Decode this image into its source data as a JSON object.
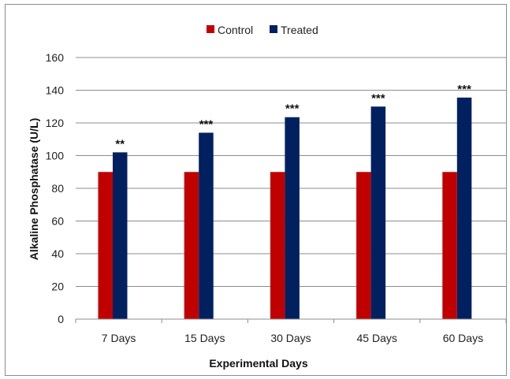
{
  "chart_data": {
    "type": "bar",
    "categories": [
      "7 Days",
      "15 Days",
      "30 Days",
      "45 Days",
      "60 Days"
    ],
    "series": [
      {
        "name": "Control",
        "color": "#c00000",
        "values": [
          90,
          90,
          90,
          90,
          90
        ]
      },
      {
        "name": "Treated",
        "color": "#002060",
        "values": [
          102,
          114,
          123.5,
          130,
          135.5
        ]
      }
    ],
    "significance": [
      "**",
      "***",
      "***",
      "***",
      "***"
    ],
    "xlabel": "Experimental Days",
    "ylabel": "Alkaline Phosphatase (U/L)",
    "ylim": [
      0,
      160
    ],
    "yticks": [
      0,
      20,
      40,
      60,
      80,
      100,
      120,
      140,
      160
    ],
    "grid": true,
    "legend_position": "top-center"
  }
}
